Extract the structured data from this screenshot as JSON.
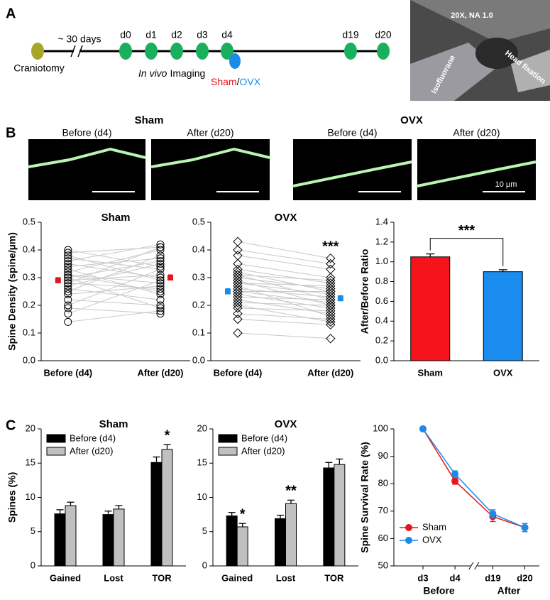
{
  "panel_labels": [
    "A",
    "B",
    "C"
  ],
  "timeline": {
    "start_label": "Craniotomy",
    "interval": "~ 30 days",
    "days": [
      "d0",
      "d1",
      "d2",
      "d3",
      "d4",
      "d19",
      "d20"
    ],
    "imaging_mode": "In vivo",
    "imaging": "Imaging",
    "groups": [
      "Sham",
      "OVX"
    ],
    "separator": "/"
  },
  "photo": {
    "labels": [
      "20X, NA 1.0",
      "Isofluorane",
      "Head fixation"
    ]
  },
  "images": {
    "groups": [
      {
        "title": "Sham",
        "panels": [
          "Before (d4)",
          "After (d20)"
        ]
      },
      {
        "title": "OVX",
        "panels": [
          "Before (d4)",
          "After (d20)"
        ]
      }
    ],
    "scale_bar": "10 µm"
  },
  "chart_data": [
    {
      "type": "paired",
      "title": "Sham",
      "title_color": "#e8141b",
      "y_label": "Spine Density (spine/µm)",
      "categories": [
        "Before (d4)",
        "After (d20)"
      ],
      "marker": "circle",
      "mean_color": "#e8141b",
      "before": [
        0.14,
        0.17,
        0.19,
        0.2,
        0.22,
        0.24,
        0.25,
        0.26,
        0.27,
        0.28,
        0.28,
        0.29,
        0.3,
        0.3,
        0.31,
        0.32,
        0.33,
        0.34,
        0.35,
        0.36,
        0.37,
        0.38,
        0.39,
        0.4,
        0.31
      ],
      "after": [
        0.18,
        0.29,
        0.17,
        0.33,
        0.2,
        0.27,
        0.38,
        0.22,
        0.35,
        0.26,
        0.41,
        0.31,
        0.19,
        0.36,
        0.28,
        0.4,
        0.24,
        0.37,
        0.3,
        0.42,
        0.33,
        0.29,
        0.41,
        0.34,
        0.25
      ],
      "means": [
        0.29,
        0.3
      ],
      "mean_errors": [
        0.01,
        0.01
      ],
      "ylim": [
        0,
        0.5
      ],
      "yticks": [
        {
          "value": 0,
          "label": "0.0"
        },
        {
          "value": 0.1,
          "label": "0.1"
        },
        {
          "value": 0.2,
          "label": "0.2"
        },
        {
          "value": 0.3,
          "label": "0.3"
        },
        {
          "value": 0.4,
          "label": "0.4"
        },
        {
          "value": 0.5,
          "label": "0.5"
        }
      ]
    },
    {
      "type": "paired",
      "title": "OVX",
      "title_color": "#1a8be8",
      "categories": [
        "Before (d4)",
        "After (d20)"
      ],
      "marker": "diamond",
      "mean_color": "#1a8be8",
      "before": [
        0.1,
        0.15,
        0.17,
        0.19,
        0.2,
        0.21,
        0.22,
        0.23,
        0.24,
        0.25,
        0.25,
        0.26,
        0.27,
        0.28,
        0.28,
        0.29,
        0.3,
        0.31,
        0.31,
        0.32,
        0.33,
        0.35,
        0.38,
        0.4,
        0.43
      ],
      "after": [
        0.08,
        0.13,
        0.15,
        0.18,
        0.14,
        0.2,
        0.17,
        0.22,
        0.19,
        0.25,
        0.21,
        0.23,
        0.16,
        0.24,
        0.27,
        0.2,
        0.26,
        0.22,
        0.29,
        0.25,
        0.28,
        0.3,
        0.33,
        0.35,
        0.37
      ],
      "means": [
        0.25,
        0.225
      ],
      "mean_errors": [
        0.01,
        0.01
      ],
      "annotation": "***",
      "ylim": [
        0,
        0.5
      ],
      "yticks": [
        {
          "value": 0,
          "label": "0.0"
        },
        {
          "value": 0.1,
          "label": "0.1"
        },
        {
          "value": 0.2,
          "label": "0.2"
        },
        {
          "value": 0.3,
          "label": "0.3"
        },
        {
          "value": 0.4,
          "label": "0.4"
        },
        {
          "value": 0.5,
          "label": "0.5"
        }
      ]
    },
    {
      "type": "bar",
      "y_label": "After/Before Ratio",
      "categories": [
        "Sham",
        "OVX"
      ],
      "values": [
        1.05,
        0.9
      ],
      "errors": [
        0.03,
        0.02
      ],
      "colors": [
        "#f5141c",
        "#1a8cf0"
      ],
      "significance": "***",
      "ylim": [
        0,
        1.4
      ],
      "yticks": [
        {
          "value": 0,
          "label": "0.0"
        },
        {
          "value": 0.2,
          "label": "0.2"
        },
        {
          "value": 0.4,
          "label": "0.4"
        },
        {
          "value": 0.6,
          "label": "0.6"
        },
        {
          "value": 0.8,
          "label": "0.8"
        },
        {
          "value": 1.0,
          "label": "1.0"
        },
        {
          "value": 1.2,
          "label": "1.2"
        },
        {
          "value": 1.4,
          "label": "1.4"
        }
      ]
    },
    {
      "type": "grouped",
      "title": "Sham",
      "title_color": "#e8141b",
      "y_label": "Spines (%)",
      "categories": [
        "Gained",
        "Lost",
        "TOR"
      ],
      "series": [
        {
          "name": "Before (d4)",
          "color": "#000000",
          "values": [
            7.6,
            7.5,
            15.1
          ],
          "errors": [
            0.6,
            0.5,
            0.8
          ]
        },
        {
          "name": "After (d20)",
          "color": "#c0c0c0",
          "values": [
            8.8,
            8.3,
            17.0
          ],
          "errors": [
            0.5,
            0.5,
            0.7
          ]
        }
      ],
      "annotations": [
        {
          "text": "*",
          "series": 1,
          "category": 2
        }
      ],
      "legend": "upper left",
      "ylim": [
        0,
        20
      ],
      "yticks": [
        0,
        5,
        10,
        15,
        20
      ]
    },
    {
      "type": "grouped",
      "title": "OVX",
      "title_color": "#1a8be8",
      "categories": [
        "Gained",
        "Lost",
        "TOR"
      ],
      "series": [
        {
          "name": "Before (d4)",
          "color": "#000000",
          "values": [
            7.3,
            6.9,
            14.3
          ],
          "errors": [
            0.5,
            0.5,
            0.8
          ]
        },
        {
          "name": "After (d20)",
          "color": "#c0c0c0",
          "values": [
            5.7,
            9.1,
            14.8
          ],
          "errors": [
            0.5,
            0.5,
            0.8
          ]
        }
      ],
      "annotations": [
        {
          "text": "*",
          "series": 1,
          "category": 0
        },
        {
          "text": "**",
          "series": 1,
          "category": 1
        }
      ],
      "legend": "upper left",
      "ylim": [
        0,
        20
      ],
      "yticks": [
        0,
        5,
        10,
        15,
        20
      ]
    },
    {
      "type": "line",
      "y_label": "Spine Survival Rate (%)",
      "categories": [
        "d3",
        "d4",
        "d19",
        "d20"
      ],
      "groups": [
        "Before",
        "After"
      ],
      "series": [
        {
          "name": "Sham",
          "color": "#e8141b",
          "values": [
            100,
            81,
            68,
            64
          ],
          "errors": [
            0.5,
            1.2,
            1.8,
            1.5
          ]
        },
        {
          "name": "OVX",
          "color": "#1a8be8",
          "values": [
            100,
            83.5,
            69,
            64
          ],
          "errors": [
            0.5,
            1.2,
            1.5,
            1.5
          ]
        }
      ],
      "legend": "lower left",
      "ylim": [
        50,
        100
      ],
      "yticks": [
        50,
        60,
        70,
        80,
        90,
        100
      ]
    }
  ]
}
